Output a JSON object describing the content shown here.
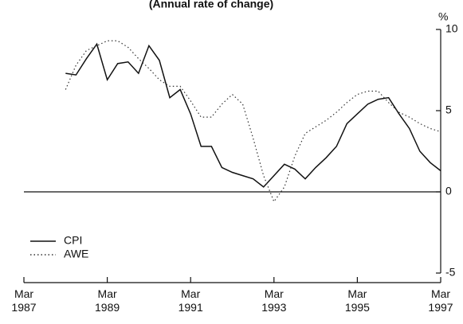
{
  "chart_data": {
    "type": "line",
    "title": "(Annual rate of change)",
    "y_unit": "%",
    "x": [
      "1988-03",
      "1988-06",
      "1988-09",
      "1988-12",
      "1989-03",
      "1989-06",
      "1989-09",
      "1989-12",
      "1990-03",
      "1990-06",
      "1990-09",
      "1990-12",
      "1991-03",
      "1991-06",
      "1991-09",
      "1991-12",
      "1992-03",
      "1992-06",
      "1992-09",
      "1992-12",
      "1993-03",
      "1993-06",
      "1993-09",
      "1993-12",
      "1994-03",
      "1994-06",
      "1994-09",
      "1994-12",
      "1995-03",
      "1995-06",
      "1995-09",
      "1995-12",
      "1996-03",
      "1996-06",
      "1996-09",
      "1996-12",
      "1997-03"
    ],
    "series": [
      {
        "name": "CPI",
        "color": "#111111",
        "dash": "solid",
        "values": [
          7.3,
          7.2,
          8.2,
          9.1,
          6.9,
          7.9,
          8.0,
          7.3,
          9.0,
          8.1,
          5.8,
          6.3,
          4.8,
          2.8,
          2.8,
          1.5,
          1.2,
          1.0,
          0.8,
          0.3,
          1.0,
          1.7,
          1.4,
          0.8,
          1.5,
          2.1,
          2.8,
          4.2,
          4.8,
          5.4,
          5.7,
          5.8,
          4.8,
          3.9,
          2.5,
          1.8,
          1.3
        ]
      },
      {
        "name": "AWE",
        "color": "#333333",
        "dash": "dotted",
        "values": [
          6.3,
          7.8,
          8.7,
          9.0,
          9.3,
          9.3,
          8.9,
          8.2,
          7.6,
          6.9,
          6.5,
          6.5,
          5.6,
          4.6,
          4.6,
          5.4,
          6.0,
          5.4,
          3.3,
          1.0,
          -0.6,
          0.3,
          2.2,
          3.6,
          4.0,
          4.4,
          4.9,
          5.5,
          6.0,
          6.2,
          6.2,
          5.5,
          4.9,
          4.6,
          4.2,
          3.9,
          3.7
        ]
      }
    ],
    "xlim": [
      "1987-03",
      "1997-03"
    ],
    "xticks": [
      {
        "value": "1987-03",
        "label": "Mar 1987"
      },
      {
        "value": "1989-03",
        "label": "Mar 1989"
      },
      {
        "value": "1991-03",
        "label": "Mar 1991"
      },
      {
        "value": "1993-03",
        "label": "Mar 1993"
      },
      {
        "value": "1995-03",
        "label": "Mar 1995"
      },
      {
        "value": "1997-03",
        "label": "Mar 1997"
      }
    ],
    "ylim": [
      -5,
      10
    ],
    "yticks": [
      -5,
      0,
      5,
      10
    ],
    "y_axis_side": "right",
    "zero_line": true,
    "legend": "lower left"
  }
}
